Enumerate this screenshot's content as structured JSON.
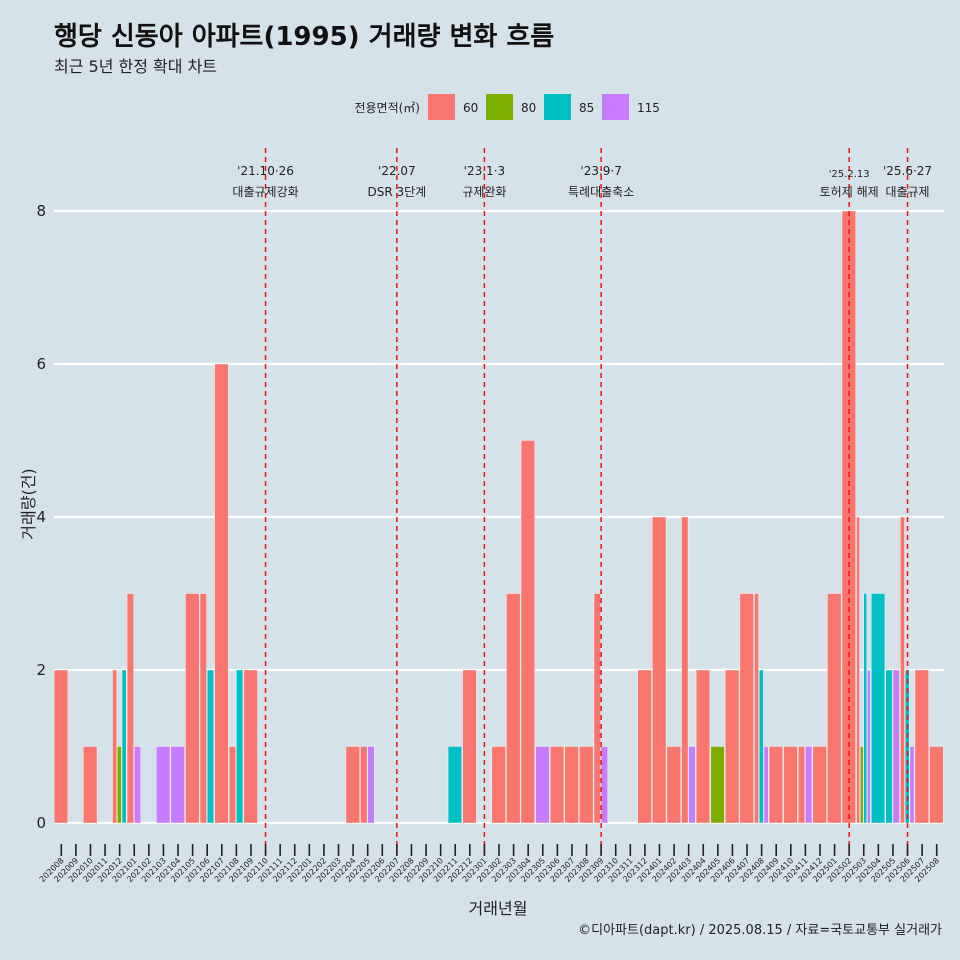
{
  "title": "행당 신동아 아파트(1995) 거래량 변화 흐름",
  "subtitle": "최근 5년 한정 확대 차트",
  "caption": "©디아파트(dapt.kr) / 2025.08.15 / 자료=국토교통부 실거래가",
  "chart_data": {
    "type": "bar",
    "xlabel": "거래년월",
    "ylabel": "거래량(건)",
    "ylim": [
      0,
      8.4
    ],
    "yticks": [
      0,
      2,
      4,
      6,
      8
    ],
    "grid": true,
    "legend": {
      "title": "전용면적(㎡)",
      "position": "top"
    },
    "categories": [
      "202008",
      "202009",
      "202010",
      "202011",
      "202012",
      "202101",
      "202102",
      "202103",
      "202104",
      "202105",
      "202106",
      "202107",
      "202108",
      "202109",
      "202110",
      "202111",
      "202112",
      "202201",
      "202202",
      "202203",
      "202204",
      "202205",
      "202206",
      "202207",
      "202208",
      "202209",
      "202210",
      "202211",
      "202212",
      "202301",
      "202302",
      "202303",
      "202304",
      "202305",
      "202306",
      "202307",
      "202308",
      "202309",
      "202310",
      "202311",
      "202312",
      "202401",
      "202402",
      "202403",
      "202404",
      "202405",
      "202406",
      "202407",
      "202408",
      "202409",
      "202410",
      "202411",
      "202412",
      "202501",
      "202502",
      "202503",
      "202504",
      "202505",
      "202506",
      "202507",
      "202508"
    ],
    "series": [
      {
        "name": "60",
        "color": "#f8766d",
        "values": [
          2,
          0,
          1,
          0,
          2,
          3,
          0,
          0,
          0,
          3,
          3,
          6,
          1,
          2,
          0,
          0,
          0,
          0,
          0,
          0,
          1,
          1,
          0,
          0,
          0,
          0,
          0,
          0,
          2,
          0,
          1,
          3,
          5,
          0,
          1,
          1,
          1,
          3,
          0,
          0,
          2,
          4,
          1,
          4,
          2,
          0,
          2,
          3,
          3,
          1,
          1,
          1,
          1,
          3,
          8,
          4,
          0,
          0,
          4,
          2,
          1
        ]
      },
      {
        "name": "80",
        "color": "#7cae00",
        "values": [
          0,
          0,
          0,
          0,
          1,
          0,
          0,
          0,
          0,
          0,
          0,
          0,
          0,
          0,
          0,
          0,
          0,
          0,
          0,
          0,
          0,
          0,
          0,
          0,
          0,
          0,
          0,
          0,
          0,
          0,
          0,
          0,
          0,
          0,
          0,
          0,
          0,
          0,
          0,
          0,
          0,
          0,
          0,
          0,
          0,
          1,
          0,
          0,
          0,
          0,
          0,
          0,
          0,
          0,
          0,
          1,
          0,
          0,
          0,
          0,
          0
        ]
      },
      {
        "name": "85",
        "color": "#00bfc4",
        "values": [
          0,
          0,
          0,
          0,
          2,
          0,
          0,
          0,
          0,
          0,
          2,
          0,
          2,
          0,
          0,
          0,
          0,
          0,
          0,
          0,
          0,
          0,
          0,
          0,
          0,
          0,
          0,
          1,
          0,
          0,
          0,
          0,
          0,
          0,
          0,
          0,
          0,
          0,
          0,
          0,
          0,
          0,
          0,
          0,
          0,
          0,
          0,
          0,
          2,
          0,
          0,
          0,
          0,
          0,
          0,
          3,
          3,
          2,
          2,
          0,
          0
        ]
      },
      {
        "name": "115",
        "color": "#c77cff",
        "values": [
          0,
          0,
          0,
          0,
          0,
          1,
          0,
          1,
          1,
          0,
          0,
          0,
          0,
          0,
          0,
          0,
          0,
          0,
          0,
          0,
          0,
          1,
          0,
          0,
          0,
          0,
          0,
          0,
          0,
          0,
          0,
          0,
          0,
          1,
          0,
          0,
          0,
          1,
          0,
          0,
          0,
          0,
          0,
          1,
          0,
          0,
          0,
          0,
          1,
          0,
          0,
          1,
          0,
          0,
          0,
          2,
          0,
          2,
          1,
          0,
          0
        ]
      }
    ],
    "events": [
      {
        "at": "202110",
        "date": "'21.10·26",
        "label": "대출규제강화"
      },
      {
        "at": "202207",
        "date": "'22.07",
        "label": "DSR 3단계"
      },
      {
        "at": "202301",
        "date": "'23.1·3",
        "label": "규제완화"
      },
      {
        "at": "202309",
        "date": "'23.9·7",
        "label": "특례대출축소"
      },
      {
        "at": "202502",
        "date": "'25.2.13",
        "label": "토허제 해제"
      },
      {
        "at": "202506",
        "date": "'25.6·27",
        "label": "대출규제"
      }
    ]
  }
}
